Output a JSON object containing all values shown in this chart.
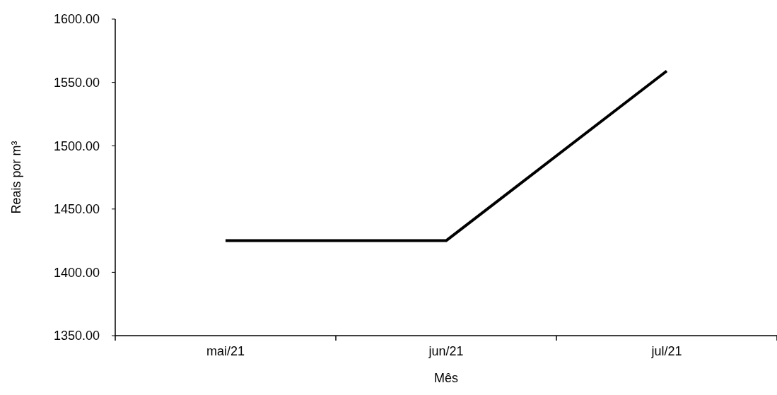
{
  "chart_data": {
    "type": "line",
    "xlabel": "Mês",
    "ylabel": "Reais por m³",
    "categories": [
      "mai/21",
      "jun/21",
      "jul/21"
    ],
    "series": [
      {
        "color": "#000000",
        "values": [
          1425,
          1425,
          1559
        ]
      }
    ],
    "ylim": [
      1350,
      1600
    ],
    "yticks": [
      {
        "value": 1350,
        "label": "1350.00"
      },
      {
        "value": 1400,
        "label": "1400.00"
      },
      {
        "value": 1450,
        "label": "1450.00"
      },
      {
        "value": 1500,
        "label": "1500.00"
      },
      {
        "value": 1550,
        "label": "1550.00"
      },
      {
        "value": 1600,
        "label": "1600.00"
      }
    ],
    "grid": false,
    "marker": "none",
    "line_style": "solid"
  }
}
